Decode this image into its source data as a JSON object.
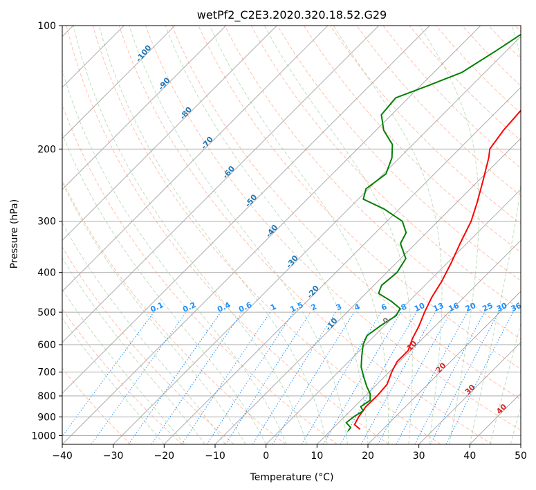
{
  "chart_data": {
    "type": "line",
    "subtype": "skew-T log-P diagram",
    "title": "wetPf2_C2E3.2020.320.18.52.G29",
    "xlabel": "Temperature (°C)",
    "ylabel": "Pressure (hPa)",
    "xlim": [
      -40,
      50
    ],
    "ylim_pressure": [
      1050,
      100
    ],
    "y_scale": "log",
    "x_ticks": [
      -40,
      -30,
      -20,
      -10,
      0,
      10,
      20,
      30,
      40,
      50
    ],
    "y_ticks": [
      1000,
      900,
      800,
      700,
      600,
      500,
      400,
      300,
      200,
      100
    ],
    "grid": true,
    "colors": {
      "temperature": "#ff0000",
      "dewpoint": "#008000",
      "isotherm": "#999999",
      "isobar": "#aaaaaa",
      "dry_adiabat": "#ff8c69",
      "moist_adiabat": "#7fbf7f",
      "mixing_ratio": "#1e90ff",
      "dry_adiabat_label": "#1f77b4",
      "moist_label_hot": "#d62728",
      "zero_label": "#808080"
    },
    "series": [
      {
        "name": "",
        "kind": "temperature",
        "points": [
          {
            "p": 965,
            "t": 15.5
          },
          {
            "p": 940,
            "t": 13.5
          },
          {
            "p": 900,
            "t": 12.8
          },
          {
            "p": 850,
            "t": 12.2
          },
          {
            "p": 800,
            "t": 12.3
          },
          {
            "p": 750,
            "t": 12.0
          },
          {
            "p": 700,
            "t": 10.5
          },
          {
            "p": 660,
            "t": 9.5
          },
          {
            "p": 620,
            "t": 9.5
          },
          {
            "p": 580,
            "t": 8.0
          },
          {
            "p": 540,
            "t": 6.8
          },
          {
            "p": 500,
            "t": 5.2
          },
          {
            "p": 460,
            "t": 3.7
          },
          {
            "p": 420,
            "t": 2.5
          },
          {
            "p": 380,
            "t": 0.8
          },
          {
            "p": 340,
            "t": -1.3
          },
          {
            "p": 300,
            "t": -3.5
          },
          {
            "p": 270,
            "t": -6.0
          },
          {
            "p": 240,
            "t": -9.0
          },
          {
            "p": 210,
            "t": -12.5
          },
          {
            "p": 200,
            "t": -14.0
          },
          {
            "p": 180,
            "t": -15.0
          },
          {
            "p": 160,
            "t": -15.5
          },
          {
            "p": 140,
            "t": -16.0
          },
          {
            "p": 120,
            "t": -16.8
          },
          {
            "p": 110,
            "t": -15.5
          },
          {
            "p": 100,
            "t": -14.0
          }
        ]
      },
      {
        "name": "",
        "kind": "dewpoint",
        "points": [
          {
            "p": 975,
            "t": 13.5
          },
          {
            "p": 955,
            "t": 13.3
          },
          {
            "p": 930,
            "t": 11.5
          },
          {
            "p": 900,
            "t": 11.8
          },
          {
            "p": 870,
            "t": 12.5
          },
          {
            "p": 850,
            "t": 11.2
          },
          {
            "p": 820,
            "t": 11.8
          },
          {
            "p": 790,
            "t": 10.5
          },
          {
            "p": 760,
            "t": 8.5
          },
          {
            "p": 720,
            "t": 6.0
          },
          {
            "p": 680,
            "t": 3.5
          },
          {
            "p": 640,
            "t": 1.5
          },
          {
            "p": 600,
            "t": -0.5
          },
          {
            "p": 570,
            "t": -1.5
          },
          {
            "p": 540,
            "t": -0.8
          },
          {
            "p": 510,
            "t": 0.3
          },
          {
            "p": 490,
            "t": -0.3
          },
          {
            "p": 470,
            "t": -3.5
          },
          {
            "p": 450,
            "t": -7.5
          },
          {
            "p": 430,
            "t": -8.5
          },
          {
            "p": 400,
            "t": -8.0
          },
          {
            "p": 370,
            "t": -9.0
          },
          {
            "p": 340,
            "t": -13.0
          },
          {
            "p": 320,
            "t": -14.0
          },
          {
            "p": 300,
            "t": -17.0
          },
          {
            "p": 280,
            "t": -23.0
          },
          {
            "p": 265,
            "t": -29.0
          },
          {
            "p": 250,
            "t": -30.5
          },
          {
            "p": 230,
            "t": -29.5
          },
          {
            "p": 210,
            "t": -31.5
          },
          {
            "p": 195,
            "t": -34.0
          },
          {
            "p": 180,
            "t": -38.5
          },
          {
            "p": 165,
            "t": -42.0
          },
          {
            "p": 150,
            "t": -42.5
          },
          {
            "p": 140,
            "t": -38.5
          },
          {
            "p": 130,
            "t": -34.5
          },
          {
            "p": 115,
            "t": -32.0
          },
          {
            "p": 100,
            "t": -29.5
          }
        ]
      }
    ],
    "dry_adiabat_labels": [
      "-100",
      "-90",
      "-80",
      "-70",
      "-60",
      "-50",
      "-40",
      "-30",
      "-20",
      "-10"
    ],
    "moist_adiabat_labels": [
      "0",
      "10",
      "20",
      "30",
      "40"
    ],
    "mixing_ratio_labels": [
      "0.1",
      "0.2",
      "0.4",
      "0.6",
      "1",
      "1.5",
      "2",
      "3",
      "4",
      "6",
      "8",
      "10",
      "13",
      "16",
      "20",
      "25",
      "30",
      "36"
    ]
  }
}
